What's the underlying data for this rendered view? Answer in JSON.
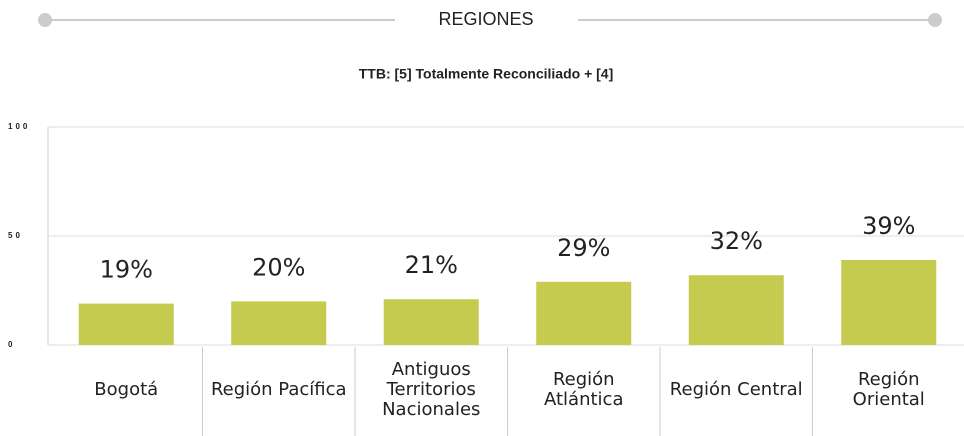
{
  "header": {
    "title": "REGIONES"
  },
  "chart_data": {
    "type": "bar",
    "title": "TTB: [5] Totalmente Reconciliado + [4]",
    "categories": [
      "Bogotá",
      "Región Pacífica",
      "Antiguos Territorios Nacionales",
      "Región Atlántica",
      "Región Central",
      "Región Oriental"
    ],
    "values": [
      19,
      20,
      21,
      29,
      32,
      39
    ],
    "value_labels": [
      "19%",
      "20%",
      "21%",
      "29%",
      "32%",
      "39%"
    ],
    "color": "#c4cb4e",
    "ylim": [
      0,
      100
    ],
    "yticks": [
      0,
      50,
      100
    ],
    "grid": true
  }
}
